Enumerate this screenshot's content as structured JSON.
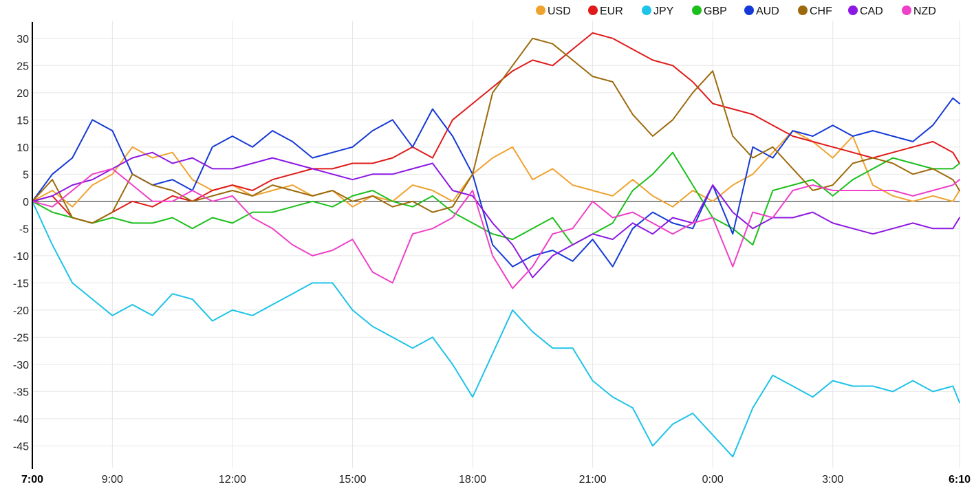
{
  "chart_data": {
    "type": "line",
    "title": "",
    "xlabel": "",
    "ylabel": "",
    "x_tick_labels": [
      "7:00",
      "9:00",
      "12:00",
      "15:00",
      "18:00",
      "21:00",
      "0:00",
      "3:00",
      "6:10"
    ],
    "x_tick_hours": [
      0,
      2,
      5,
      8,
      11,
      14,
      17,
      20,
      23.1667
    ],
    "x_range_hours": [
      0,
      23.1667
    ],
    "bold_x_ticks": [
      "7:00",
      "6:10"
    ],
    "y_ticks": [
      30,
      25,
      20,
      15,
      10,
      5,
      0,
      -5,
      -10,
      -15,
      -20,
      -25,
      -30,
      -35,
      -40,
      -45
    ],
    "ylim": [
      -49,
      32
    ],
    "grid": true,
    "legend_position": "top-right",
    "series": [
      {
        "name": "USD",
        "color": "#f0a22e",
        "x": [
          0,
          0.5,
          1,
          1.5,
          2,
          2.5,
          3,
          3.5,
          4,
          4.5,
          5,
          5.5,
          6,
          6.5,
          7,
          7.5,
          8,
          8.5,
          9,
          9.5,
          10,
          10.5,
          11,
          11.5,
          12,
          12.5,
          13,
          13.5,
          14,
          14.5,
          15,
          15.5,
          16,
          16.5,
          17,
          17.5,
          18,
          18.5,
          19,
          19.5,
          20,
          20.5,
          21,
          21.5,
          22,
          22.5,
          23,
          23.1667
        ],
        "y": [
          0,
          2,
          -1,
          3,
          5,
          10,
          8,
          9,
          4,
          2,
          3,
          1,
          2,
          3,
          1,
          2,
          -1,
          1,
          0,
          3,
          2,
          0,
          5,
          8,
          10,
          4,
          6,
          3,
          2,
          1,
          4,
          1,
          -1,
          2,
          0,
          3,
          5,
          9,
          13,
          11,
          8,
          12,
          3,
          1,
          0,
          1,
          0,
          2
        ]
      },
      {
        "name": "EUR",
        "color": "#e01a1a",
        "x": [
          0,
          0.5,
          1,
          1.5,
          2,
          2.5,
          3,
          3.5,
          4,
          4.5,
          5,
          5.5,
          6,
          6.5,
          7,
          7.5,
          8,
          8.5,
          9,
          9.5,
          10,
          10.5,
          11,
          11.5,
          12,
          12.5,
          13,
          13.5,
          14,
          14.5,
          15,
          15.5,
          16,
          16.5,
          17,
          17.5,
          18,
          18.5,
          19,
          19.5,
          20,
          20.5,
          21,
          21.5,
          22,
          22.5,
          23,
          23.1667
        ],
        "y": [
          0,
          1,
          -3,
          -4,
          -2,
          0,
          -1,
          1,
          0,
          2,
          3,
          2,
          4,
          5,
          6,
          6,
          7,
          7,
          8,
          10,
          8,
          15,
          18,
          21,
          24,
          26,
          25,
          28,
          31,
          30,
          28,
          26,
          25,
          22,
          18,
          17,
          16,
          14,
          12,
          11,
          10,
          9,
          8,
          9,
          10,
          11,
          9,
          7
        ]
      },
      {
        "name": "JPY",
        "color": "#1ec3e8",
        "x": [
          0,
          0.5,
          1,
          1.5,
          2,
          2.5,
          3,
          3.5,
          4,
          4.5,
          5,
          5.5,
          6,
          6.5,
          7,
          7.5,
          8,
          8.5,
          9,
          9.5,
          10,
          10.5,
          11,
          11.5,
          12,
          12.5,
          13,
          13.5,
          14,
          14.5,
          15,
          15.5,
          16,
          16.5,
          17,
          17.5,
          18,
          18.5,
          19,
          19.5,
          20,
          20.5,
          21,
          21.5,
          22,
          22.5,
          23,
          23.1667
        ],
        "y": [
          0,
          -8,
          -15,
          -18,
          -21,
          -19,
          -21,
          -17,
          -18,
          -22,
          -20,
          -21,
          -19,
          -17,
          -15,
          -15,
          -20,
          -23,
          -25,
          -27,
          -25,
          -30,
          -36,
          -28,
          -20,
          -24,
          -27,
          -27,
          -33,
          -36,
          -38,
          -45,
          -41,
          -39,
          -43,
          -47,
          -38,
          -32,
          -34,
          -36,
          -33,
          -34,
          -34,
          -35,
          -33,
          -35,
          -34,
          -37
        ]
      },
      {
        "name": "GBP",
        "color": "#1cbf1c",
        "x": [
          0,
          0.5,
          1,
          1.5,
          2,
          2.5,
          3,
          3.5,
          4,
          4.5,
          5,
          5.5,
          6,
          6.5,
          7,
          7.5,
          8,
          8.5,
          9,
          9.5,
          10,
          10.5,
          11,
          11.5,
          12,
          12.5,
          13,
          13.5,
          14,
          14.5,
          15,
          15.5,
          16,
          16.5,
          17,
          17.5,
          18,
          18.5,
          19,
          19.5,
          20,
          20.5,
          21,
          21.5,
          22,
          22.5,
          23,
          23.1667
        ],
        "y": [
          0,
          -2,
          -3,
          -4,
          -3,
          -4,
          -4,
          -3,
          -5,
          -3,
          -4,
          -2,
          -2,
          -1,
          0,
          -1,
          1,
          2,
          0,
          -1,
          1,
          -2,
          -4,
          -6,
          -7,
          -5,
          -3,
          -8,
          -6,
          -4,
          2,
          5,
          9,
          3,
          -3,
          -5,
          -8,
          2,
          3,
          4,
          1,
          4,
          6,
          8,
          7,
          6,
          6,
          7
        ]
      },
      {
        "name": "AUD",
        "color": "#1439d6",
        "x": [
          0,
          0.5,
          1,
          1.5,
          2,
          2.5,
          3,
          3.5,
          4,
          4.5,
          5,
          5.5,
          6,
          6.5,
          7,
          7.5,
          8,
          8.5,
          9,
          9.5,
          10,
          10.5,
          11,
          11.5,
          12,
          12.5,
          13,
          13.5,
          14,
          14.5,
          15,
          15.5,
          16,
          16.5,
          17,
          17.5,
          18,
          18.5,
          19,
          19.5,
          20,
          20.5,
          21,
          21.5,
          22,
          22.5,
          23,
          23.1667
        ],
        "y": [
          0,
          5,
          8,
          15,
          13,
          5,
          3,
          4,
          2,
          10,
          12,
          10,
          13,
          11,
          8,
          9,
          10,
          13,
          15,
          10,
          17,
          12,
          5,
          -8,
          -12,
          -10,
          -9,
          -11,
          -7,
          -12,
          -5,
          -2,
          -4,
          -5,
          3,
          -6,
          10,
          8,
          13,
          12,
          14,
          12,
          13,
          12,
          11,
          14,
          19,
          18
        ]
      },
      {
        "name": "CHF",
        "color": "#9c6a0c",
        "x": [
          0,
          0.5,
          1,
          1.5,
          2,
          2.5,
          3,
          3.5,
          4,
          4.5,
          5,
          5.5,
          6,
          6.5,
          7,
          7.5,
          8,
          8.5,
          9,
          9.5,
          10,
          10.5,
          11,
          11.5,
          12,
          12.5,
          13,
          13.5,
          14,
          14.5,
          15,
          15.5,
          16,
          16.5,
          17,
          17.5,
          18,
          18.5,
          19,
          19.5,
          20,
          20.5,
          21,
          21.5,
          22,
          22.5,
          23,
          23.1667
        ],
        "y": [
          0,
          4,
          -3,
          -4,
          -2,
          5,
          3,
          2,
          0,
          1,
          2,
          1,
          3,
          2,
          1,
          2,
          0,
          1,
          -1,
          0,
          -2,
          -1,
          5,
          20,
          25,
          30,
          29,
          26,
          23,
          22,
          16,
          12,
          15,
          20,
          24,
          12,
          8,
          10,
          6,
          2,
          3,
          7,
          8,
          7,
          5,
          6,
          4,
          2
        ]
      },
      {
        "name": "CAD",
        "color": "#8d18e3",
        "x": [
          0,
          0.5,
          1,
          1.5,
          2,
          2.5,
          3,
          3.5,
          4,
          4.5,
          5,
          5.5,
          6,
          6.5,
          7,
          7.5,
          8,
          8.5,
          9,
          9.5,
          10,
          10.5,
          11,
          11.5,
          12,
          12.5,
          13,
          13.5,
          14,
          14.5,
          15,
          15.5,
          16,
          16.5,
          17,
          17.5,
          18,
          18.5,
          19,
          19.5,
          20,
          20.5,
          21,
          21.5,
          22,
          22.5,
          23,
          23.1667
        ],
        "y": [
          0,
          1,
          3,
          4,
          6,
          8,
          9,
          7,
          8,
          6,
          6,
          7,
          8,
          7,
          6,
          5,
          4,
          5,
          5,
          6,
          7,
          2,
          1,
          -4,
          -8,
          -14,
          -10,
          -8,
          -6,
          -7,
          -4,
          -6,
          -3,
          -4,
          3,
          -2,
          -5,
          -3,
          -3,
          -2,
          -4,
          -5,
          -6,
          -5,
          -4,
          -5,
          -5,
          -3
        ]
      },
      {
        "name": "NZD",
        "color": "#ee40c8",
        "x": [
          0,
          0.5,
          1,
          1.5,
          2,
          2.5,
          3,
          3.5,
          4,
          4.5,
          5,
          5.5,
          6,
          6.5,
          7,
          7.5,
          8,
          8.5,
          9,
          9.5,
          10,
          10.5,
          11,
          11.5,
          12,
          12.5,
          13,
          13.5,
          14,
          14.5,
          15,
          15.5,
          16,
          16.5,
          17,
          17.5,
          18,
          18.5,
          19,
          19.5,
          20,
          20.5,
          21,
          21.5,
          22,
          22.5,
          23,
          23.1667
        ],
        "y": [
          0,
          -1,
          2,
          5,
          6,
          3,
          0,
          0,
          2,
          0,
          1,
          -3,
          -5,
          -8,
          -10,
          -9,
          -7,
          -13,
          -15,
          -6,
          -5,
          -3,
          2,
          -10,
          -16,
          -12,
          -6,
          -5,
          0,
          -3,
          -2,
          -4,
          -6,
          -4,
          -3,
          -12,
          -2,
          -3,
          2,
          3,
          2,
          2,
          2,
          2,
          1,
          2,
          3,
          4
        ]
      }
    ]
  }
}
